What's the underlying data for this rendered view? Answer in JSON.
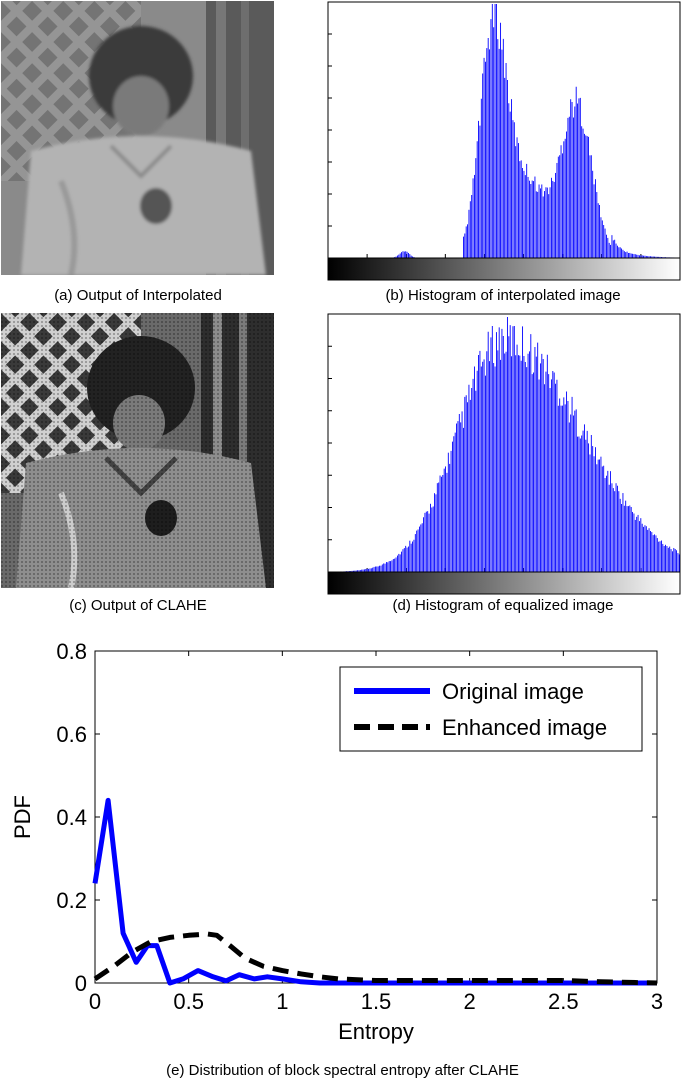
{
  "captions": {
    "a": "(a) Output of Interpolated",
    "b": "(b) Histogram of interpolated image",
    "c": "(c) Output of CLAHE",
    "d": "(d) Histogram of equalized image",
    "e": "(e) Distribution of block spectral entropy after CLAHE"
  },
  "chart_data": [
    {
      "type": "bar",
      "caption": "(b) Histogram of interpolated image",
      "note_bins": "intensity 0-255",
      "shape": "bimodal",
      "peaks": [
        {
          "intensity": 120,
          "relative_height": 1.0
        },
        {
          "intensity": 180,
          "relative_height": 0.67
        }
      ],
      "small_bump": {
        "intensity": 55,
        "relative_height": 0.03
      },
      "support": [
        100,
        235
      ],
      "colorbar": "grayscale black-to-white",
      "bar_color": "#0000ff"
    },
    {
      "type": "bar",
      "caption": "(d) Histogram of equalized image",
      "note_bins": "intensity 0-255",
      "shape": "unimodal skewed right",
      "peaks": [
        {
          "intensity": 128,
          "relative_height": 1.0
        }
      ],
      "support": [
        0,
        255
      ],
      "colorbar": "grayscale black-to-white",
      "bar_color": "#0000ff"
    },
    {
      "type": "line",
      "caption": "(e) Distribution of block spectral entropy after CLAHE",
      "xlabel": "Entropy",
      "ylabel": "PDF",
      "xlim": [
        0,
        3
      ],
      "ylim": [
        0,
        0.8
      ],
      "xticks": [
        "0",
        "0.5",
        "1",
        "1.5",
        "2",
        "2.5",
        "3"
      ],
      "yticks": [
        "0",
        "0.2",
        "0.4",
        "0.6",
        "0.8"
      ],
      "legend_position": "top-right",
      "series": [
        {
          "name": "Original image",
          "color": "#0000ff",
          "style": "solid",
          "points": [
            [
              0,
              0.24
            ],
            [
              0.07,
              0.44
            ],
            [
              0.15,
              0.12
            ],
            [
              0.22,
              0.05
            ],
            [
              0.28,
              0.09
            ],
            [
              0.33,
              0.09
            ],
            [
              0.4,
              0.0
            ],
            [
              0.47,
              0.01
            ],
            [
              0.55,
              0.03
            ],
            [
              0.63,
              0.015
            ],
            [
              0.7,
              0.005
            ],
            [
              0.77,
              0.02
            ],
            [
              0.85,
              0.01
            ],
            [
              0.92,
              0.015
            ],
            [
              1.0,
              0.01
            ],
            [
              1.1,
              0.003
            ],
            [
              1.2,
              0.0
            ],
            [
              1.5,
              0.0
            ],
            [
              2.0,
              0.0
            ],
            [
              2.5,
              0.0
            ],
            [
              3.0,
              0.0
            ]
          ]
        },
        {
          "name": "Enhanced image",
          "color": "#000000",
          "style": "dashed",
          "points": [
            [
              0,
              0.01
            ],
            [
              0.1,
              0.04
            ],
            [
              0.2,
              0.075
            ],
            [
              0.3,
              0.1
            ],
            [
              0.4,
              0.11
            ],
            [
              0.5,
              0.115
            ],
            [
              0.6,
              0.118
            ],
            [
              0.65,
              0.115
            ],
            [
              0.72,
              0.09
            ],
            [
              0.8,
              0.06
            ],
            [
              0.9,
              0.04
            ],
            [
              1.0,
              0.03
            ],
            [
              1.1,
              0.022
            ],
            [
              1.2,
              0.015
            ],
            [
              1.3,
              0.01
            ],
            [
              1.5,
              0.006
            ],
            [
              2.0,
              0.006
            ],
            [
              2.5,
              0.006
            ],
            [
              2.7,
              0.003
            ],
            [
              3.0,
              0.0
            ]
          ]
        }
      ]
    }
  ]
}
